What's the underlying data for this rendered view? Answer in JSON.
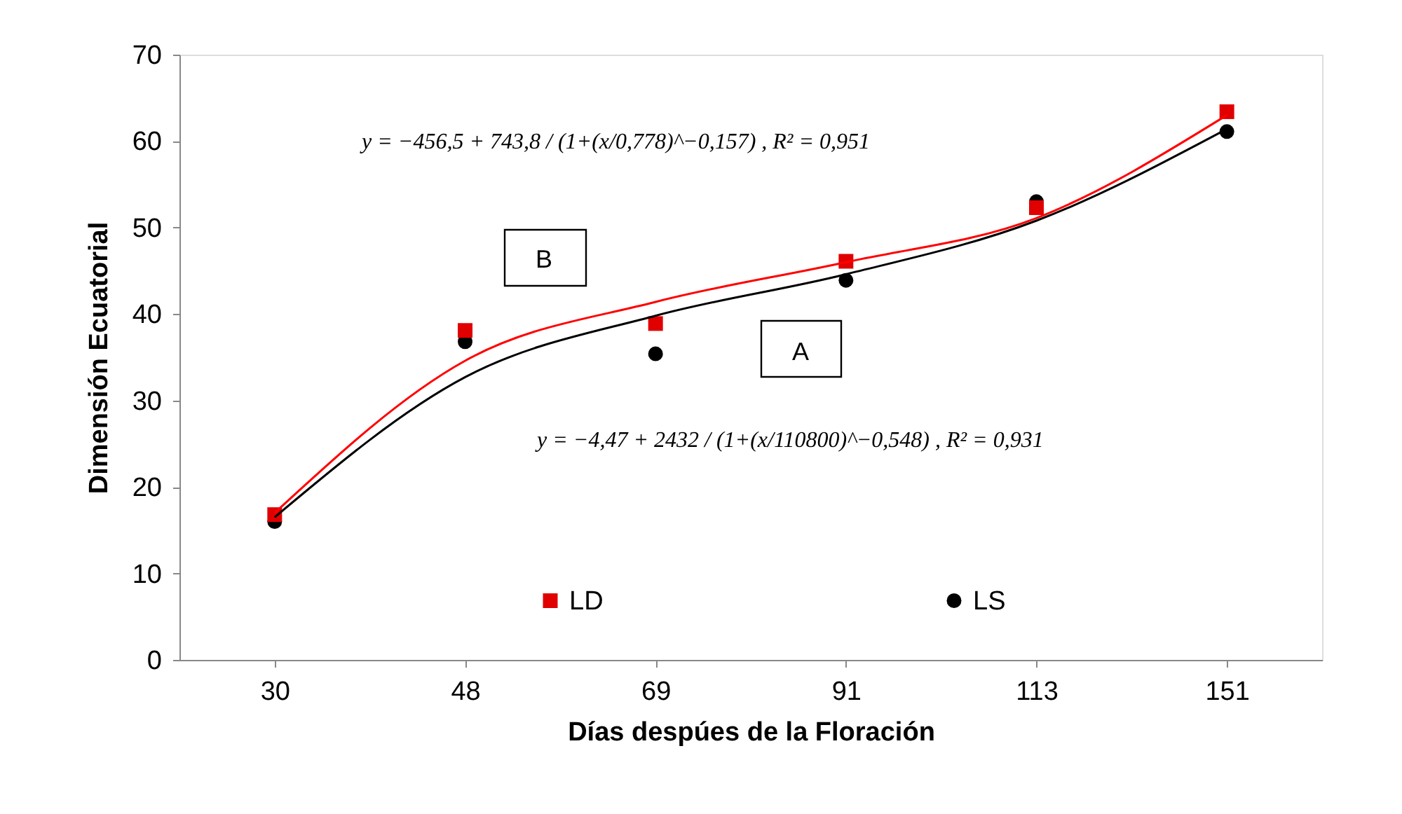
{
  "chart_data": {
    "type": "scatter",
    "xlabel": "Días despúes de la Floración",
    "ylabel": "Dimensión Ecuatorial",
    "categories": [
      "30",
      "48",
      "69",
      "91",
      "113",
      "151"
    ],
    "series": [
      {
        "name": "LD",
        "type": "scatter",
        "marker": "square",
        "color": "#e00000",
        "values": [
          16.8,
          38.1,
          38.9,
          46.1,
          52.3,
          63.4
        ]
      },
      {
        "name": "LS",
        "type": "scatter",
        "marker": "circle",
        "color": "#000000",
        "values": [
          16.0,
          36.8,
          35.4,
          43.9,
          53.0,
          61.1
        ]
      },
      {
        "type": "line",
        "marker": "none",
        "color": "#ff0000",
        "values": [
          17.0,
          34.6,
          41.4,
          46.0,
          51.1,
          63.0
        ]
      },
      {
        "type": "line",
        "marker": "none",
        "color": "#000000",
        "values": [
          16.5,
          32.7,
          39.8,
          44.6,
          50.8,
          61.4
        ]
      }
    ],
    "ylim": [
      0,
      70
    ],
    "yticks": [
      0,
      10,
      20,
      30,
      40,
      50,
      60,
      70
    ],
    "grid": false,
    "legend": "bottom",
    "annotations": [
      "y = −456,5 + 743,8 / (1+(x/0,778)^−0,157) , R² = 0,951",
      "y = −4,47 + 2432 / (1+(x/110800)^−0,548) , R² = 0,931",
      "B",
      "A"
    ]
  }
}
